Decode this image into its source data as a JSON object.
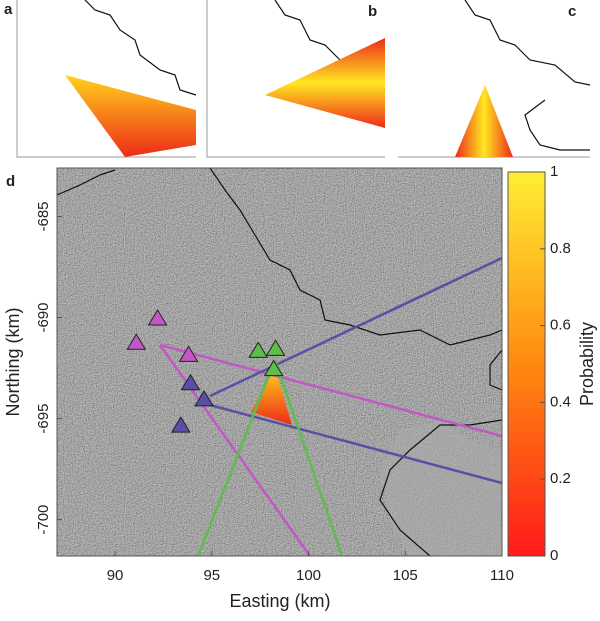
{
  "panels": [
    {
      "label": "a"
    },
    {
      "label": "b"
    },
    {
      "label": "c"
    }
  ],
  "chart_data": {
    "type": "scatter",
    "label": "d",
    "xlabel": "Easting (km)",
    "ylabel": "Northing (km)",
    "xlim": [
      87,
      110
    ],
    "xticks": [
      90,
      95,
      100,
      105,
      110
    ],
    "ylim": [
      -701.8,
      -682.6
    ],
    "yticks": [
      -685,
      -690,
      -695,
      -700
    ],
    "series": [
      {
        "color": "#c158c6",
        "x": [
          91.1,
          92.2,
          93.8
        ],
        "y": [
          -691.2,
          -690.0,
          -691.8
        ]
      },
      {
        "color": "#5a4fa6",
        "x": [
          93.9,
          94.6,
          93.4
        ],
        "y": [
          -693.2,
          -694.0,
          -695.3
        ]
      },
      {
        "color": "#5fbd4a",
        "x": [
          97.4,
          98.3,
          98.2
        ],
        "y": [
          -691.6,
          -691.5,
          -692.5
        ]
      }
    ],
    "colorbar": {
      "label": "Probability",
      "lim": [
        0,
        1
      ],
      "ticks": [
        0,
        0.2,
        0.4,
        0.6,
        0.8,
        1
      ]
    }
  }
}
